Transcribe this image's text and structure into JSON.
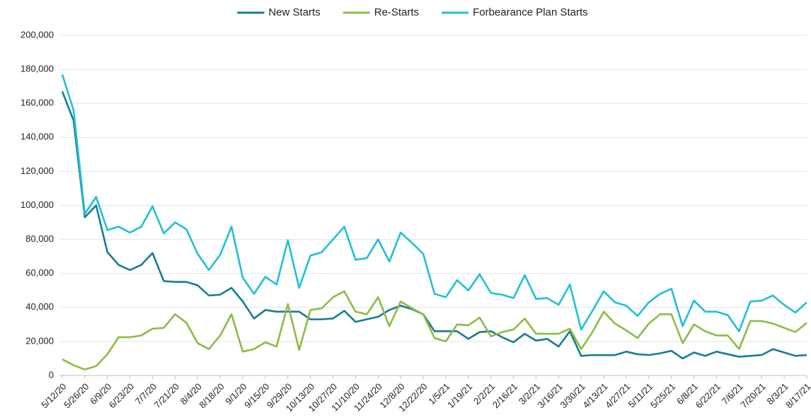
{
  "chart_data": {
    "type": "line",
    "categories": [
      "5/12/20",
      null,
      "5/26/20",
      null,
      "6/9/20",
      null,
      "6/23/20",
      null,
      "7/7/20",
      null,
      "7/21/20",
      null,
      "8/4/20",
      null,
      "8/18/20",
      null,
      "9/1/20",
      null,
      "9/15/20",
      null,
      "9/29/20",
      null,
      "10/13/20",
      null,
      "10/27/20",
      null,
      "11/10/20",
      null,
      "11/24/20",
      null,
      "12/8/20",
      null,
      "12/22/20",
      null,
      "1/5/21",
      null,
      "1/19/21",
      null,
      "2/2/21",
      null,
      "2/16/21",
      null,
      "3/2/21",
      null,
      "3/16/21",
      null,
      "3/30/21",
      null,
      "4/13/21",
      null,
      "4/27/21",
      null,
      "5/11/21",
      null,
      "5/25/21",
      null,
      "6/8/21",
      null,
      "6/22/21",
      null,
      "7/6/21",
      null,
      "7/20/21",
      null,
      "8/3/21",
      null,
      "8/17/21"
    ],
    "series": [
      {
        "name": "New Starts",
        "color": "#167d91",
        "values": [
          167000,
          150000,
          93000,
          100000,
          72500,
          65000,
          62000,
          65000,
          72000,
          55500,
          55000,
          55000,
          53000,
          47000,
          47500,
          51500,
          43500,
          33500,
          38500,
          37500,
          37500,
          37500,
          33000,
          33000,
          33500,
          38000,
          31500,
          33000,
          34500,
          38500,
          41000,
          39000,
          36000,
          26000,
          26000,
          26000,
          21500,
          25500,
          26000,
          22500,
          19500,
          24500,
          20500,
          21500,
          17000,
          26000,
          11500,
          12000,
          12000,
          12000,
          14000,
          12500,
          12000,
          13000,
          14500,
          10000,
          13500,
          11500,
          14000,
          12500,
          11000,
          11500,
          12000,
          15500,
          13500,
          11500,
          12000
        ]
      },
      {
        "name": "Re-Starts",
        "color": "#8dbb45",
        "values": [
          9500,
          6000,
          3500,
          5500,
          12500,
          22500,
          22500,
          23500,
          27500,
          28000,
          36000,
          31000,
          19000,
          15500,
          23500,
          36000,
          14000,
          15500,
          19500,
          17000,
          42000,
          15000,
          38500,
          39500,
          46000,
          49500,
          37500,
          36000,
          46000,
          29000,
          43500,
          39500,
          36000,
          22000,
          20000,
          30000,
          29500,
          34000,
          23000,
          25500,
          27000,
          33500,
          24500,
          24500,
          24500,
          27500,
          15500,
          25500,
          37500,
          30500,
          26500,
          22000,
          30500,
          36000,
          36000,
          19000,
          30000,
          26000,
          23500,
          23500,
          15500,
          32000,
          32000,
          30500,
          28000,
          25500,
          31000
        ]
      },
      {
        "name": "Forbearance Plan Starts",
        "color": "#1fc0d8",
        "values": [
          177000,
          156000,
          95000,
          105000,
          85500,
          87500,
          84000,
          87500,
          99500,
          83500,
          90000,
          86000,
          71500,
          62000,
          71000,
          87500,
          57500,
          48000,
          58000,
          53500,
          79500,
          51500,
          70500,
          72500,
          80000,
          87500,
          68000,
          69000,
          80000,
          67000,
          84000,
          78000,
          71500,
          48000,
          46000,
          56000,
          50000,
          59500,
          48500,
          47500,
          45500,
          59000,
          45000,
          45500,
          41500,
          53500,
          27000,
          38000,
          49500,
          43000,
          41000,
          35000,
          43000,
          48000,
          51000,
          29000,
          44000,
          37500,
          37500,
          35500,
          26000,
          43500,
          44000,
          47000,
          41500,
          37000,
          43000
        ]
      }
    ],
    "ylim": [
      0,
      200000
    ],
    "yticks": [
      0,
      {
        "value": 20000,
        "label": "20,000"
      },
      {
        "value": 40000,
        "label": "40,000"
      },
      {
        "value": 60000,
        "label": "60,000"
      },
      {
        "value": 80000,
        "label": "80,000"
      },
      {
        "value": 100000,
        "label": "100,000"
      },
      {
        "value": 120000,
        "label": "120,000"
      },
      {
        "value": 140000,
        "label": "140,000"
      },
      {
        "value": 160000,
        "label": "160,000"
      },
      {
        "value": 180000,
        "label": "180,000"
      },
      {
        "value": 200000,
        "label": "200,000"
      }
    ],
    "grid": true,
    "legend": "top"
  }
}
